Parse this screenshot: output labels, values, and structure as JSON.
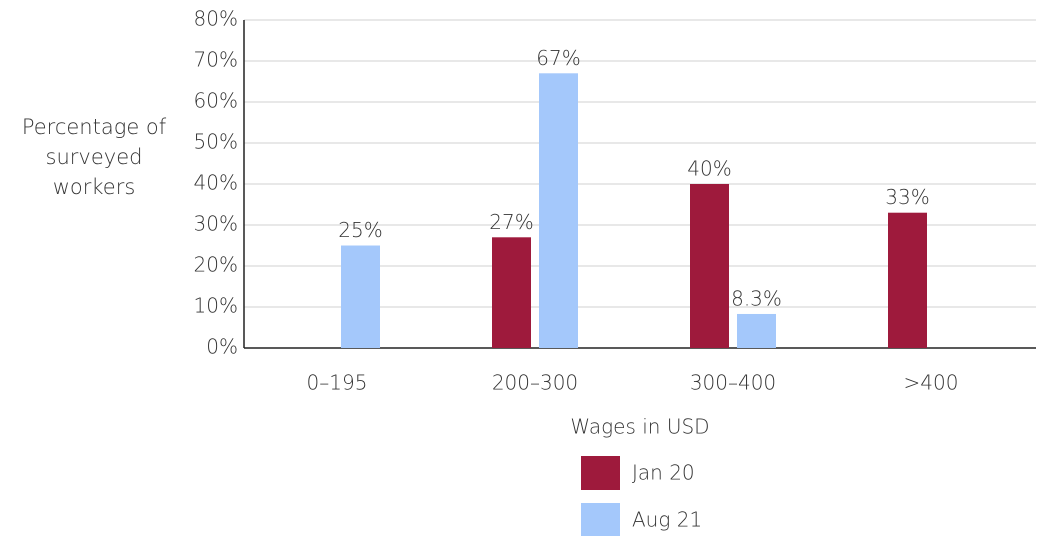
{
  "chart_data": {
    "type": "bar",
    "y_label": "Percentage of surveyed workers",
    "x_label": "Wages in USD",
    "categories": [
      "0–195",
      "200–300",
      "300–400",
      ">400"
    ],
    "series": [
      {
        "name": "Jan 20",
        "color": "#9e1a3c",
        "values": [
          null,
          27,
          40,
          33
        ],
        "value_labels": [
          null,
          "27%",
          "40%",
          "33%"
        ]
      },
      {
        "name": "Aug 21",
        "color": "#a4c8fb",
        "values": [
          25,
          67,
          8.3,
          null
        ],
        "value_labels": [
          "25%",
          "67%",
          "8.3%",
          null
        ]
      }
    ],
    "ylim": [
      0,
      80
    ],
    "yticks": [
      {
        "value": 0,
        "label": "0%"
      },
      {
        "value": 10,
        "label": "10%"
      },
      {
        "value": 20,
        "label": "20%"
      },
      {
        "value": 30,
        "label": "30%"
      },
      {
        "value": 40,
        "label": "40%"
      },
      {
        "value": 50,
        "label": "50%"
      },
      {
        "value": 60,
        "label": "60%"
      },
      {
        "value": 70,
        "label": "70%"
      },
      {
        "value": 80,
        "label": "80%"
      }
    ],
    "grid": true
  }
}
